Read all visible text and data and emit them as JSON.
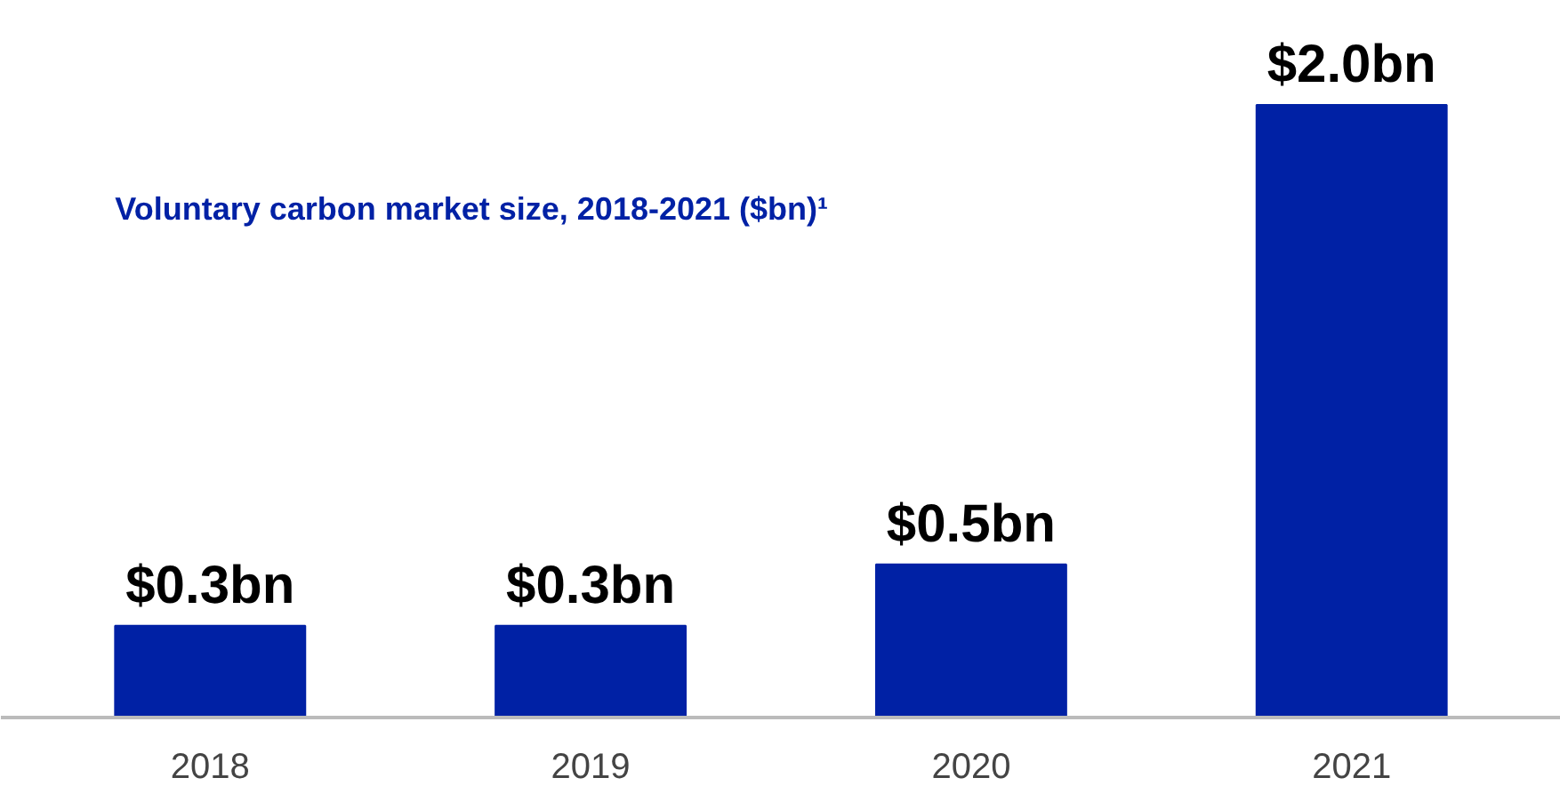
{
  "chart_data": {
    "type": "bar",
    "title": "Voluntary carbon market size, 2018-2021 ($bn)¹",
    "categories": [
      "2018",
      "2019",
      "2020",
      "2021"
    ],
    "values": [
      0.3,
      0.3,
      0.5,
      2.0
    ],
    "value_labels": [
      "$0.3bn",
      "$0.3bn",
      "$0.5bn",
      "$2.0bn"
    ],
    "color": "#0021a5",
    "grid": false
  }
}
